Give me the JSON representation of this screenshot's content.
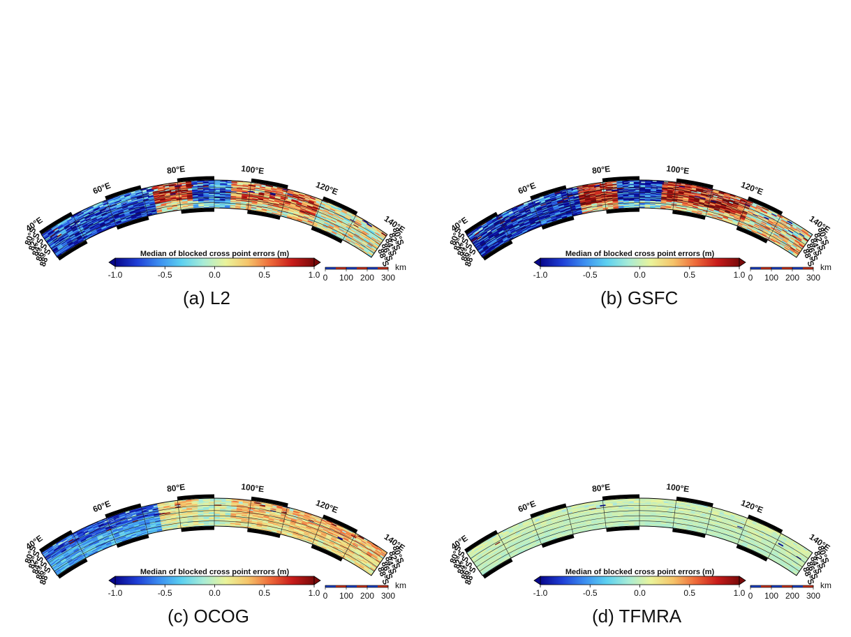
{
  "figure": {
    "panels": [
      {
        "caption": "(a) L2",
        "pattern": "l2",
        "noise_scale": 1.0
      },
      {
        "caption": "(b) GSFC",
        "pattern": "gsfc",
        "noise_scale": 1.15
      },
      {
        "caption": "(c) OCOG",
        "pattern": "ocog",
        "noise_scale": 0.55
      },
      {
        "caption": "(d) TFMRA",
        "pattern": "tfmra",
        "noise_scale": 0.18
      }
    ],
    "longitude_labels": [
      "40°E",
      "60°E",
      "80°E",
      "100°E",
      "120°E",
      "140°E"
    ],
    "latitude_labels_left": [
      "80°S",
      "82°S",
      "84°S",
      "86°S",
      "88°S"
    ],
    "latitude_labels_right": [
      "80°S",
      "82°S",
      "84°S",
      "86°S",
      "88°S"
    ],
    "colorbar": {
      "title": "Median of blocked cross point errors (m)",
      "ticks": [
        "-1.0",
        "-0.5",
        "0.0",
        "0.5",
        "1.0"
      ],
      "range": [
        -1.0,
        1.0
      ],
      "colors": [
        "#08088c",
        "#1f3fd6",
        "#3c8ef0",
        "#5cd0f0",
        "#a8ecd6",
        "#eaf39a",
        "#f5c46a",
        "#ee6b3a",
        "#c81c1a",
        "#7a0a0a"
      ]
    },
    "scale_bar": {
      "unit": "km",
      "ticks": [
        "0",
        "100",
        "200",
        "300"
      ]
    }
  }
}
